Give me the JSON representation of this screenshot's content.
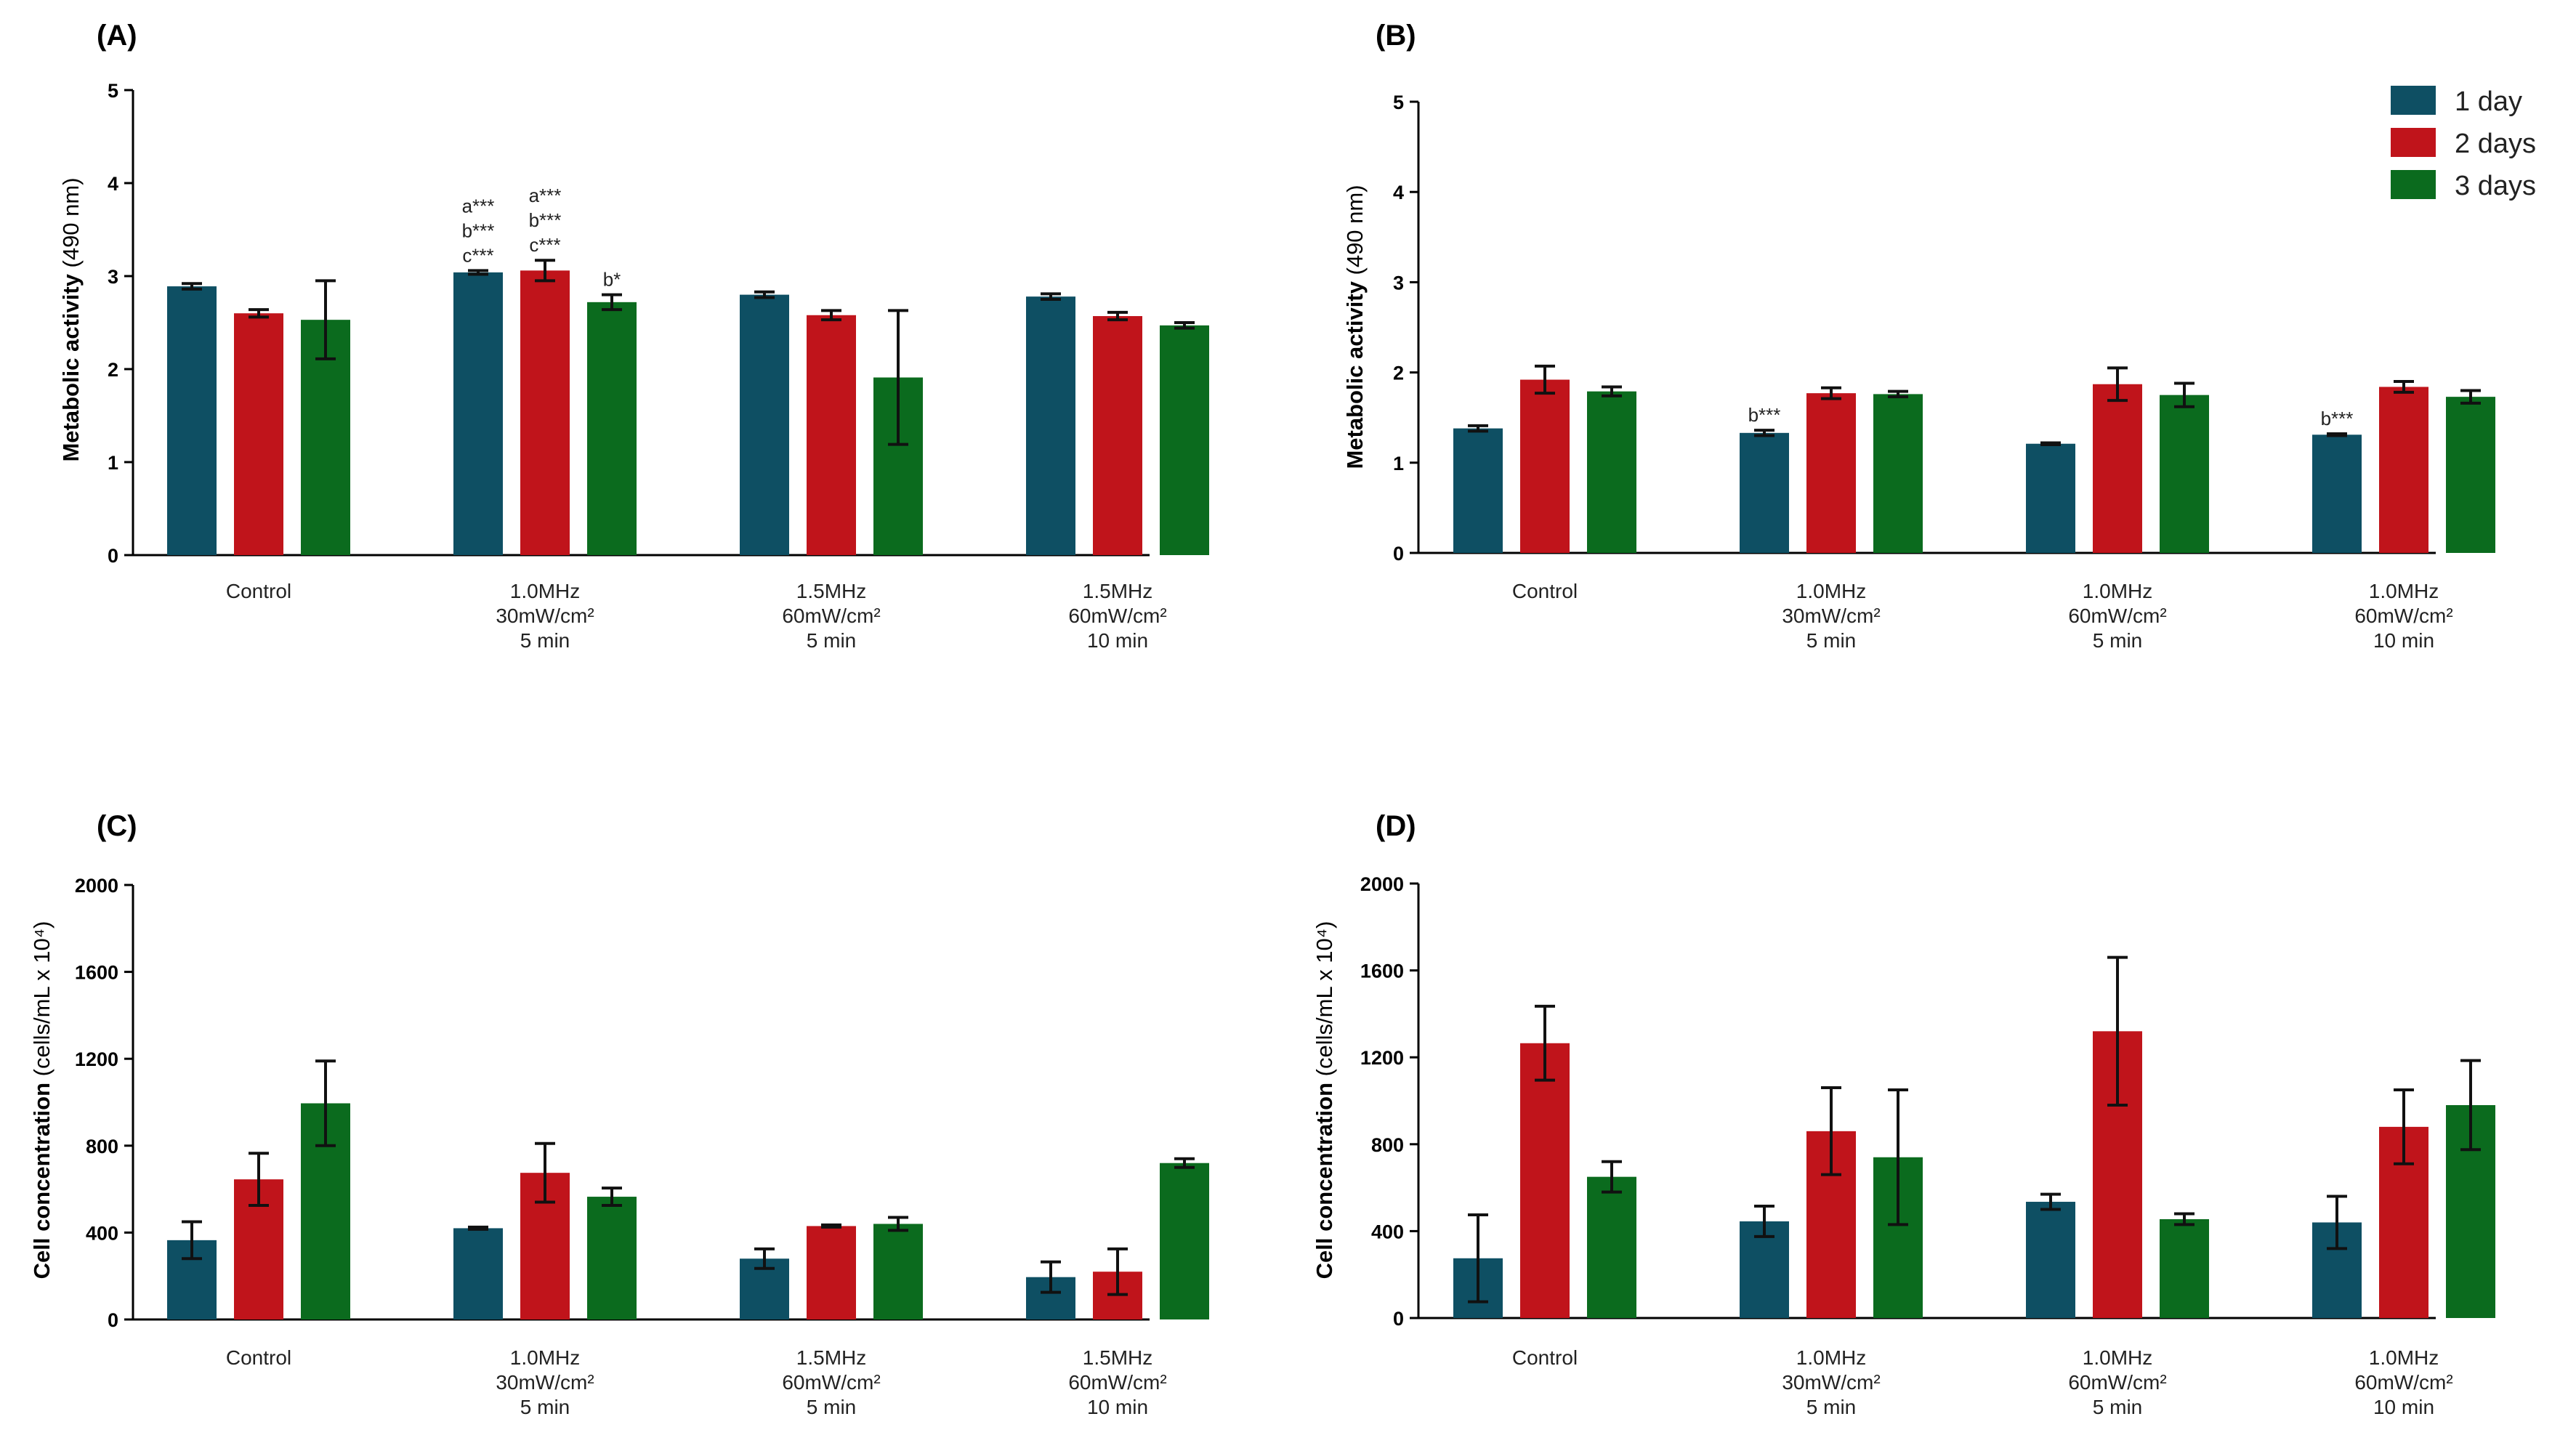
{
  "colors": {
    "day1": "#0e4f63",
    "day2": "#c0141b",
    "day3": "#0b6b1e"
  },
  "legend": [
    {
      "label": "1 day",
      "color": "#0e4f63"
    },
    {
      "label": "2 days",
      "color": "#c0141b"
    },
    {
      "label": "3 days",
      "color": "#0b6b1e"
    }
  ],
  "chart_data": [
    {
      "panel": "(A)",
      "type": "bar",
      "ylabel_main": "Metabolic activity",
      "ylabel_unit": "(490 nm)",
      "ylim": [
        0,
        5
      ],
      "yticks": [
        "0",
        "1",
        "2",
        "3",
        "4",
        "5"
      ],
      "categories": [
        [
          "Control"
        ],
        [
          "1.0MHz",
          "30mW/cm²",
          "5 min"
        ],
        [
          "1.5MHz",
          "60mW/cm²",
          "5 min"
        ],
        [
          "1.5MHz",
          "60mW/cm²",
          "10 min"
        ]
      ],
      "series": [
        {
          "name": "1 day",
          "values": [
            2.89,
            3.04,
            2.8,
            2.78
          ],
          "errors": [
            0.03,
            0.02,
            0.03,
            0.03
          ]
        },
        {
          "name": "2 days",
          "values": [
            2.6,
            3.06,
            2.58,
            2.57
          ],
          "errors": [
            0.04,
            0.11,
            0.05,
            0.04
          ]
        },
        {
          "name": "3 days",
          "values": [
            2.53,
            2.72,
            1.91,
            2.47
          ],
          "errors": [
            0.42,
            0.08,
            0.72,
            0.03
          ]
        }
      ],
      "annotations": [
        {
          "category": 1,
          "series": 0,
          "lines": [
            "a***",
            "b***",
            "c***"
          ]
        },
        {
          "category": 1,
          "series": 1,
          "lines": [
            "a***",
            "b***",
            "c***"
          ]
        },
        {
          "category": 1,
          "series": 2,
          "lines": [
            "b*"
          ]
        }
      ]
    },
    {
      "panel": "(B)",
      "type": "bar",
      "ylabel_main": "Metabolic activity",
      "ylabel_unit": "(490 nm)",
      "ylim": [
        0,
        5
      ],
      "yticks": [
        "0",
        "1",
        "2",
        "3",
        "4",
        "5"
      ],
      "categories": [
        [
          "Control"
        ],
        [
          "1.0MHz",
          "30mW/cm²",
          "5 min"
        ],
        [
          "1.0MHz",
          "60mW/cm²",
          "5 min"
        ],
        [
          "1.0MHz",
          "60mW/cm²",
          "10 min"
        ]
      ],
      "series": [
        {
          "name": "1 day",
          "values": [
            1.38,
            1.33,
            1.21,
            1.31
          ],
          "errors": [
            0.03,
            0.03,
            0.01,
            0.01
          ]
        },
        {
          "name": "2 days",
          "values": [
            1.92,
            1.77,
            1.87,
            1.84
          ],
          "errors": [
            0.15,
            0.06,
            0.18,
            0.06
          ]
        },
        {
          "name": "3 days",
          "values": [
            1.79,
            1.76,
            1.75,
            1.73
          ],
          "errors": [
            0.05,
            0.03,
            0.13,
            0.07
          ]
        }
      ],
      "annotations": [
        {
          "category": 1,
          "series": 0,
          "lines": [
            "b***"
          ]
        },
        {
          "category": 3,
          "series": 0,
          "lines": [
            "b***"
          ]
        }
      ]
    },
    {
      "panel": "(C)",
      "type": "bar",
      "ylabel_main": "Cell concentration",
      "ylabel_unit": "(cells/mL x 10⁴)",
      "ylim": [
        0,
        2000
      ],
      "yticks": [
        "0",
        "400",
        "800",
        "1200",
        "1600",
        "2000"
      ],
      "categories": [
        [
          "Control"
        ],
        [
          "1.0MHz",
          "30mW/cm²",
          "5 min"
        ],
        [
          "1.5MHz",
          "60mW/cm²",
          "5 min"
        ],
        [
          "1.5MHz",
          "60mW/cm²",
          "10 min"
        ]
      ],
      "series": [
        {
          "name": "1 day",
          "values": [
            365,
            420,
            280,
            195
          ],
          "errors": [
            85,
            5,
            45,
            70
          ]
        },
        {
          "name": "2 days",
          "values": [
            645,
            675,
            430,
            220
          ],
          "errors": [
            120,
            135,
            5,
            105
          ]
        },
        {
          "name": "3 days",
          "values": [
            995,
            565,
            440,
            720
          ],
          "errors": [
            195,
            40,
            30,
            20
          ]
        }
      ],
      "annotations": []
    },
    {
      "panel": "(D)",
      "type": "bar",
      "ylabel_main": "Cell concentration",
      "ylabel_unit": "(cells/mL x 10⁴)",
      "ylim": [
        0,
        2000
      ],
      "yticks": [
        "0",
        "400",
        "800",
        "1200",
        "1600",
        "2000"
      ],
      "categories": [
        [
          "Control"
        ],
        [
          "1.0MHz",
          "30mW/cm²",
          "5 min"
        ],
        [
          "1.0MHz",
          "60mW/cm²",
          "5 min"
        ],
        [
          "1.0MHz",
          "60mW/cm²",
          "10 min"
        ]
      ],
      "series": [
        {
          "name": "1 day",
          "values": [
            275,
            445,
            535,
            440
          ],
          "errors": [
            200,
            70,
            35,
            120
          ]
        },
        {
          "name": "2 days",
          "values": [
            1265,
            860,
            1320,
            880
          ],
          "errors": [
            170,
            200,
            340,
            170
          ]
        },
        {
          "name": "3 days",
          "values": [
            650,
            740,
            455,
            980
          ],
          "errors": [
            70,
            310,
            25,
            205
          ]
        }
      ],
      "annotations": []
    }
  ]
}
